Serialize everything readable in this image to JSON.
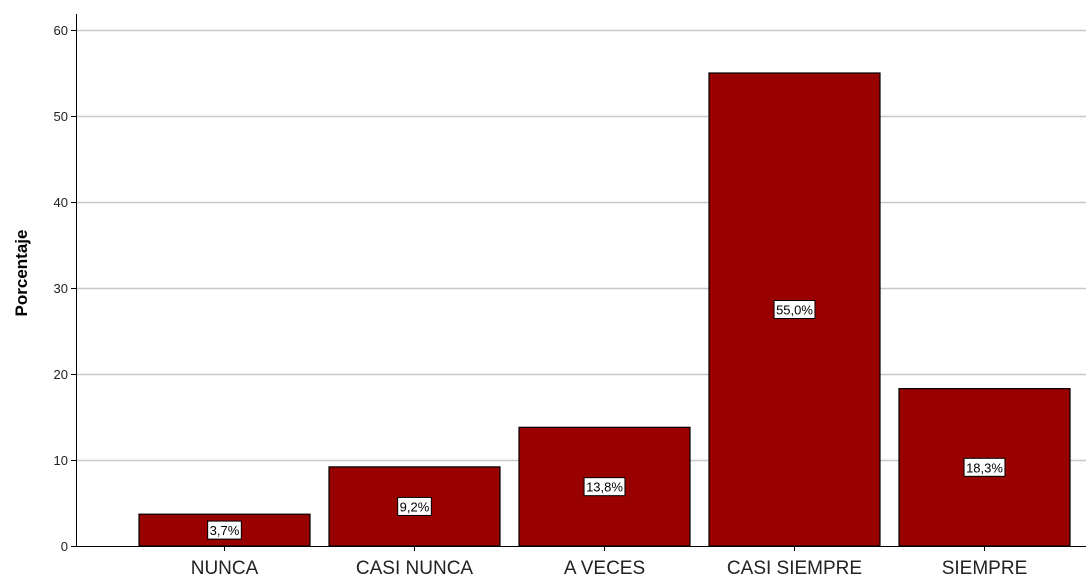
{
  "chart_data": {
    "type": "bar",
    "title": "",
    "xlabel": "",
    "ylabel": "Porcentaje",
    "ylim": [
      0,
      60
    ],
    "yticks": [
      0,
      10,
      20,
      30,
      40,
      50,
      60
    ],
    "grid": true,
    "legend": "none",
    "categories": [
      "NUNCA",
      "CASI NUNCA",
      "A VECES",
      "CASI SIEMPRE",
      "SIEMPRE"
    ],
    "values": [
      3.7,
      9.2,
      13.8,
      55.0,
      18.3
    ],
    "data_labels": [
      "3,7%",
      "9,2%",
      "13,8%",
      "55,0%",
      "18,3%"
    ],
    "bar_color": "#990000",
    "grid_color": "#c8c8c8"
  }
}
